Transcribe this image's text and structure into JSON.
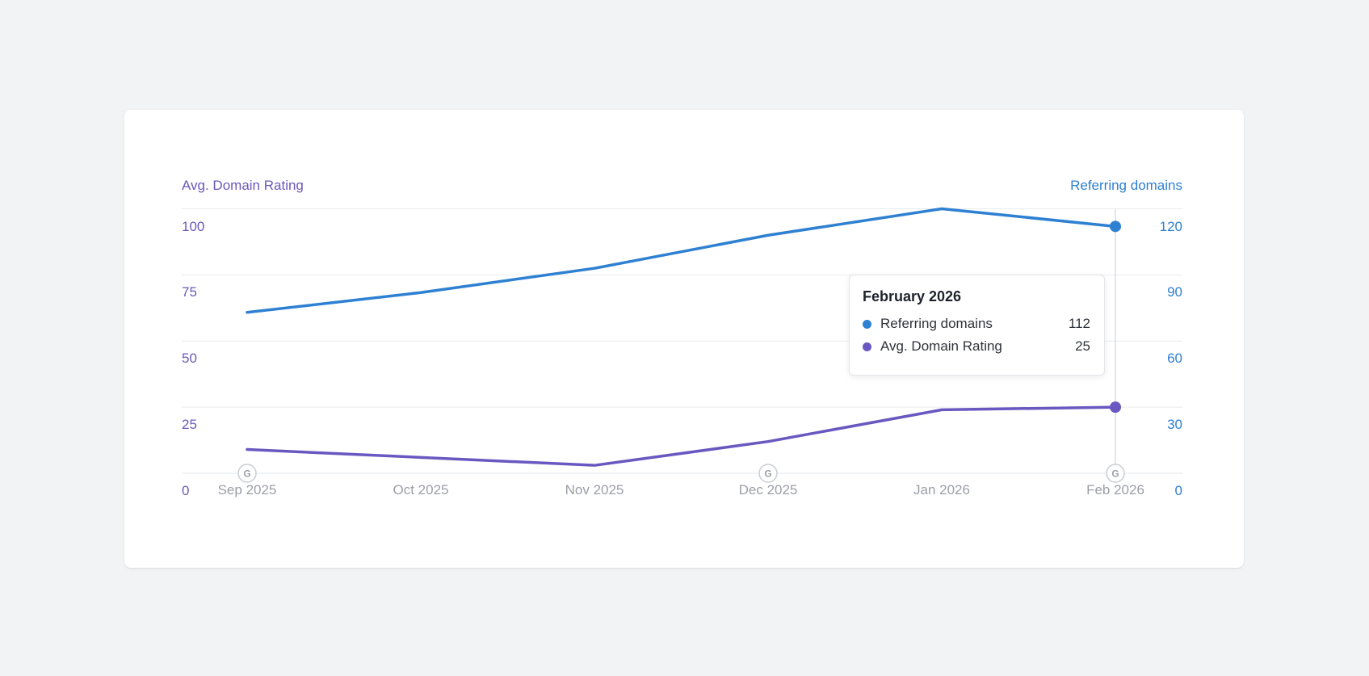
{
  "page": {
    "background_color": "#f2f3f5",
    "card_background": "#ffffff"
  },
  "chart_data": {
    "type": "line",
    "x": [
      "Sep 2025",
      "Oct 2025",
      "Nov 2025",
      "Dec 2025",
      "Jan 2026",
      "Feb 2026"
    ],
    "series": [
      {
        "name": "Referring domains",
        "axis": "right",
        "color": "#2e80d2",
        "values": [
          73,
          82,
          93,
          108,
          120,
          112
        ]
      },
      {
        "name": "Avg. Domain Rating",
        "axis": "left",
        "color": "#6a58c0",
        "values": [
          9,
          6,
          3,
          12,
          24,
          25
        ]
      }
    ],
    "left_axis": {
      "label": "Avg. Domain Rating",
      "ticks": [
        100,
        75,
        50,
        25,
        0
      ],
      "range": [
        0,
        110
      ],
      "color": "#6c58ba"
    },
    "right_axis": {
      "label": "Referring domains",
      "ticks": [
        120,
        90,
        60,
        30,
        0
      ],
      "range": [
        0,
        132
      ],
      "color": "#2e7fd0"
    },
    "grid": true,
    "grid_color": "#e9ebee",
    "baseline_color": "#e2e4e8",
    "crosshair_color": "#dbdee3",
    "highlight_x": "Feb 2026",
    "annotations": {
      "letter": "G",
      "title": "google-update-marker",
      "months": [
        "Sep 2025",
        "Dec 2025",
        "Feb 2026"
      ],
      "circle_border": "#c9ccd2",
      "letter_color": "#9aa0a8"
    }
  },
  "tooltip": {
    "title": "February 2026",
    "rows": [
      {
        "label": "Referring domains",
        "value": "112",
        "color": "#2e80d2"
      },
      {
        "label": "Avg. Domain Rating",
        "value": "25",
        "color": "#6a58c0"
      }
    ]
  }
}
